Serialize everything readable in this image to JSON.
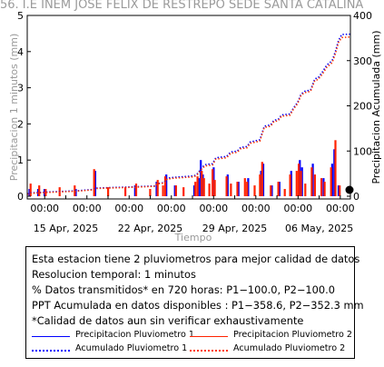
{
  "title": "56. I.E INEM JOSE FELIX DE RESTREPO SEDE SANTA CATALINA",
  "chart_data": {
    "type": "bar",
    "xlabel": "Tiempo",
    "ylabel_left": "Precipitacion 1 minutos (mm)",
    "ylabel_right": "Precipitacion Acumulada (mm)",
    "ylim_left": [
      0,
      5
    ],
    "ylim_right": [
      0,
      400
    ],
    "yticks_left": [
      "0",
      "1",
      "2",
      "3",
      "4",
      "5"
    ],
    "yticks_right": [
      "0",
      "100",
      "200",
      "300",
      "400"
    ],
    "xticks_time": [
      "00:00",
      "00:00",
      "00:00",
      "00:00",
      "00:00",
      "00:00",
      "00:00",
      "00:00",
      "00:00",
      "00:00",
      "00:00",
      "00:00",
      "00:00",
      "00:00",
      "00:00",
      "00:00"
    ],
    "xticks_date": [
      "15 Apr, 2025",
      "22 Apr, 2025",
      "29 Apr, 2025",
      "06 May, 2025"
    ],
    "x_range_days": [
      0,
      30
    ],
    "grid": false,
    "series": [
      {
        "name": "Precipitacion Pluviometro 1",
        "kind": "bar",
        "color": "#0000ff",
        "points": [
          [
            0.2,
            0.2
          ],
          [
            1.0,
            0.2
          ],
          [
            1.6,
            0.2
          ],
          [
            4.5,
            0.2
          ],
          [
            6.3,
            0.7
          ],
          [
            10.0,
            0.3
          ],
          [
            12.0,
            0.4
          ],
          [
            12.9,
            0.6
          ],
          [
            13.7,
            0.3
          ],
          [
            15.5,
            0.3
          ],
          [
            15.9,
            0.5
          ],
          [
            16.1,
            1.0
          ],
          [
            16.3,
            0.6
          ],
          [
            17.3,
            0.8
          ],
          [
            18.6,
            0.6
          ],
          [
            19.6,
            0.4
          ],
          [
            20.5,
            0.5
          ],
          [
            21.7,
            0.7
          ],
          [
            21.9,
            0.9
          ],
          [
            22.7,
            0.3
          ],
          [
            23.4,
            0.4
          ],
          [
            24.5,
            0.7
          ],
          [
            25.3,
            1.0
          ],
          [
            25.5,
            0.8
          ],
          [
            26.5,
            0.9
          ],
          [
            27.5,
            0.5
          ],
          [
            28.3,
            0.9
          ],
          [
            28.5,
            1.3
          ],
          [
            28.9,
            0.3
          ]
        ]
      },
      {
        "name": "Precipitacion Pluviometro 2",
        "kind": "bar",
        "color": "#ff2200",
        "points": [
          [
            0.3,
            0.35
          ],
          [
            1.1,
            0.3
          ],
          [
            1.7,
            0.2
          ],
          [
            3.0,
            0.25
          ],
          [
            4.4,
            0.3
          ],
          [
            6.2,
            0.75
          ],
          [
            7.5,
            0.25
          ],
          [
            9.1,
            0.25
          ],
          [
            10.1,
            0.35
          ],
          [
            11.4,
            0.2
          ],
          [
            12.1,
            0.45
          ],
          [
            12.6,
            0.3
          ],
          [
            12.8,
            0.55
          ],
          [
            13.8,
            0.3
          ],
          [
            14.5,
            0.25
          ],
          [
            15.6,
            0.4
          ],
          [
            15.8,
            0.55
          ],
          [
            16.2,
            0.7
          ],
          [
            16.4,
            0.5
          ],
          [
            16.9,
            0.35
          ],
          [
            17.2,
            0.75
          ],
          [
            17.4,
            0.45
          ],
          [
            18.5,
            0.55
          ],
          [
            18.9,
            0.35
          ],
          [
            19.5,
            0.4
          ],
          [
            20.2,
            0.5
          ],
          [
            20.4,
            0.4
          ],
          [
            21.1,
            0.3
          ],
          [
            21.6,
            0.6
          ],
          [
            21.8,
            0.95
          ],
          [
            22.6,
            0.3
          ],
          [
            23.3,
            0.4
          ],
          [
            23.9,
            0.2
          ],
          [
            24.4,
            0.6
          ],
          [
            25.0,
            0.7
          ],
          [
            25.2,
            0.9
          ],
          [
            25.4,
            0.7
          ],
          [
            25.8,
            0.35
          ],
          [
            26.4,
            0.8
          ],
          [
            26.7,
            0.6
          ],
          [
            27.3,
            0.5
          ],
          [
            27.6,
            0.4
          ],
          [
            28.2,
            0.8
          ],
          [
            28.6,
            1.55
          ],
          [
            29.0,
            0.3
          ]
        ]
      },
      {
        "name": "Acumulado Pluviometro 1",
        "kind": "line",
        "style": "dotted",
        "color": "#0000ff",
        "axis": "right",
        "points": [
          [
            0,
            5
          ],
          [
            0.2,
            7
          ],
          [
            1.6,
            9
          ],
          [
            4.5,
            12
          ],
          [
            6.2,
            15
          ],
          [
            6.4,
            18
          ],
          [
            10.0,
            21
          ],
          [
            11.9,
            23
          ],
          [
            12.0,
            28
          ],
          [
            12.7,
            30
          ],
          [
            13.0,
            40
          ],
          [
            13.7,
            42
          ],
          [
            15.5,
            45
          ],
          [
            15.8,
            50
          ],
          [
            16.2,
            63
          ],
          [
            16.5,
            70
          ],
          [
            17.2,
            72
          ],
          [
            17.5,
            85
          ],
          [
            18.5,
            88
          ],
          [
            18.9,
            98
          ],
          [
            19.5,
            100
          ],
          [
            19.8,
            108
          ],
          [
            20.4,
            110
          ],
          [
            20.7,
            120
          ],
          [
            21.6,
            125
          ],
          [
            21.8,
            140
          ],
          [
            22.0,
            155
          ],
          [
            22.6,
            158
          ],
          [
            22.9,
            168
          ],
          [
            23.3,
            170
          ],
          [
            23.6,
            180
          ],
          [
            24.4,
            182
          ],
          [
            24.7,
            195
          ],
          [
            25.1,
            208
          ],
          [
            25.4,
            225
          ],
          [
            25.7,
            232
          ],
          [
            26.3,
            235
          ],
          [
            26.7,
            260
          ],
          [
            27.0,
            262
          ],
          [
            27.4,
            275
          ],
          [
            27.8,
            290
          ],
          [
            28.3,
            300
          ],
          [
            28.6,
            320
          ],
          [
            28.9,
            345
          ],
          [
            29.2,
            358
          ],
          [
            30,
            358.6
          ]
        ]
      },
      {
        "name": "Acumulado Pluviometro 2",
        "kind": "line",
        "style": "dotted",
        "color": "#ff3300",
        "axis": "right",
        "points": [
          [
            0,
            4
          ],
          [
            0.2,
            6
          ],
          [
            1.6,
            8
          ],
          [
            4.5,
            11
          ],
          [
            6.2,
            14
          ],
          [
            6.4,
            17
          ],
          [
            10.0,
            20
          ],
          [
            11.9,
            22
          ],
          [
            12.0,
            27
          ],
          [
            12.7,
            29
          ],
          [
            13.0,
            38
          ],
          [
            13.7,
            40
          ],
          [
            15.5,
            43
          ],
          [
            15.8,
            48
          ],
          [
            16.2,
            60
          ],
          [
            16.5,
            67
          ],
          [
            17.2,
            69
          ],
          [
            17.5,
            82
          ],
          [
            18.5,
            85
          ],
          [
            18.9,
            95
          ],
          [
            19.5,
            97
          ],
          [
            19.8,
            105
          ],
          [
            20.4,
            107
          ],
          [
            20.7,
            117
          ],
          [
            21.6,
            122
          ],
          [
            21.8,
            137
          ],
          [
            22.0,
            152
          ],
          [
            22.6,
            155
          ],
          [
            22.9,
            165
          ],
          [
            23.3,
            167
          ],
          [
            23.6,
            177
          ],
          [
            24.4,
            179
          ],
          [
            24.7,
            192
          ],
          [
            25.1,
            205
          ],
          [
            25.4,
            222
          ],
          [
            25.7,
            229
          ],
          [
            26.3,
            232
          ],
          [
            26.7,
            256
          ],
          [
            27.0,
            258
          ],
          [
            27.4,
            270
          ],
          [
            27.8,
            285
          ],
          [
            28.3,
            295
          ],
          [
            28.6,
            315
          ],
          [
            28.9,
            340
          ],
          [
            29.2,
            351
          ],
          [
            30,
            352.3
          ]
        ]
      }
    ]
  },
  "info": {
    "line1": "Esta estacion tiene 2 pluviometros para mejor calidad de datos",
    "line2": "Resolucion temporal: 1 minutos",
    "line3": "% Datos transmitidos* en 720 horas: P1−100.0, P2−100.0",
    "line4": "PPT Acumulada en datos disponibles : P1−358.6, P2−352.3 mm",
    "line5": "*Calidad de datos aun sin verificar exhaustivamente"
  },
  "legend": {
    "p1_label": "Precipitacion Pluviometro 1",
    "p2_label": "Precipitacion Pluviometro 2",
    "a1_label": "Acumulado Pluviometro 1",
    "a2_label": "Acumulado Pluviometro 2"
  },
  "colors": {
    "blue": "#0000ff",
    "red": "#ff2200",
    "title": "#9a9a9a"
  }
}
